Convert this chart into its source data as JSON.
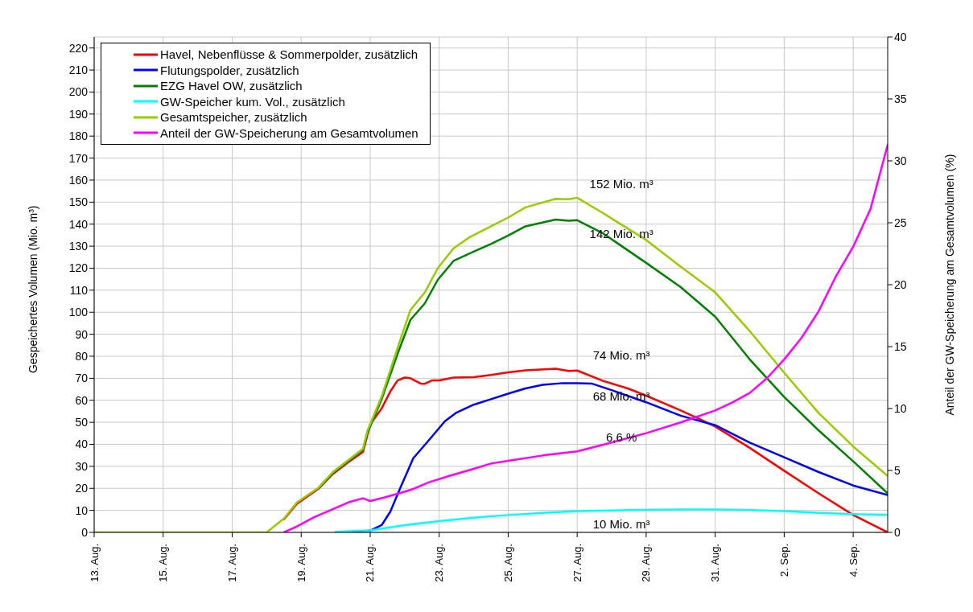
{
  "chart_data": {
    "type": "line",
    "ylabel": "Gespeichertes Volumen (Mio. m³)",
    "y2label": "Anteil der GW-Speicherung am Gesamtvolumen (%)",
    "xlim": [
      "--08-13",
      "--09-05"
    ],
    "xticks": [
      {
        "value": "--08-13",
        "label": "13. Aug."
      },
      {
        "value": "--08-15",
        "label": "15. Aug."
      },
      {
        "value": "--08-17",
        "label": "17. Aug."
      },
      {
        "value": "--08-19",
        "label": "19. Aug."
      },
      {
        "value": "--08-21",
        "label": "21. Aug."
      },
      {
        "value": "--08-23",
        "label": "23. Aug."
      },
      {
        "value": "--08-25",
        "label": "25. Aug."
      },
      {
        "value": "--08-27",
        "label": "27. Aug."
      },
      {
        "value": "--08-29",
        "label": "29. Aug."
      },
      {
        "value": "--08-31",
        "label": "31. Aug."
      },
      {
        "value": "--09-02",
        "label": "2. Sep."
      },
      {
        "value": "--09-04",
        "label": "4. Sep."
      }
    ],
    "ylim": [
      0,
      225
    ],
    "yticks": [
      0,
      10,
      20,
      30,
      40,
      50,
      60,
      70,
      80,
      90,
      100,
      110,
      120,
      130,
      140,
      150,
      160,
      170,
      180,
      190,
      200,
      210,
      220
    ],
    "y2lim": [
      0,
      40
    ],
    "y2ticks": [
      0,
      5,
      10,
      15,
      20,
      25,
      30,
      35,
      40
    ],
    "grid": true,
    "legend": "top left",
    "marker": "none",
    "line_style": "solid",
    "series": [
      {
        "name": "Havel, Nebenflüsse & Sommerpolder, zusätzlich",
        "color": "#ff0000",
        "x": [
          "--08-18T12:00",
          "--08-18T21:00",
          "--08-19T12:00",
          "--08-19T22:00",
          "--08-20T09:00",
          "--08-20T19:00",
          "--08-21",
          "--08-21T08:00",
          "--08-21T14:00",
          "--08-21T19:00",
          "--08-22",
          "--08-22T04:00",
          "--08-22T11:00",
          "--08-22T14:00",
          "--08-22T19:00",
          "--08-23",
          "--08-23T10:00",
          "--08-24",
          "--08-24T12:00",
          "--08-25",
          "--08-25T12:00",
          "--08-26T09:00",
          "--08-26T18:00",
          "--08-27",
          "--08-27T18:00",
          "--08-28T12:00",
          "--08-29",
          "--08-30",
          "--08-30T12:00",
          "--08-31",
          "--09-01",
          "--09-02",
          "--09-03",
          "--09-04",
          "--09-05"
        ],
        "values": [
          6,
          13,
          19.8,
          26.5,
          32,
          36.5,
          49,
          56.3,
          64,
          69,
          70.3,
          70,
          67.6,
          67.5,
          69,
          69,
          70.3,
          70.5,
          71.5,
          72.7,
          73.6,
          74.3,
          73.3,
          73.5,
          68.8,
          65.2,
          62.1,
          55.4,
          51.8,
          48.1,
          38.4,
          28,
          17.7,
          7.9,
          0
        ]
      },
      {
        "name": "Flutungspolder, zusätzlich",
        "color": "#0000ff",
        "x": [
          "--08-20T12:00",
          "--08-21",
          "--08-21T08:00",
          "--08-21T14:00",
          "--08-21T21:00",
          "--08-22T06:00",
          "--08-22T17:00",
          "--08-23T04:00",
          "--08-23T12:00",
          "--08-24",
          "--08-24T12:00",
          "--08-25",
          "--08-25T12:00",
          "--08-26",
          "--08-26T14:00",
          "--08-27",
          "--08-27T10:00",
          "--08-28",
          "--08-29",
          "--08-30",
          "--08-31",
          "--09-01",
          "--09-02",
          "--09-03",
          "--09-04",
          "--09-05"
        ],
        "values": [
          0.3,
          0.8,
          3.3,
          9.4,
          20.3,
          33.7,
          42,
          50.5,
          54.4,
          58,
          60.5,
          63,
          65.4,
          67,
          67.8,
          67.8,
          67.6,
          64.6,
          59.1,
          53,
          48.7,
          40.8,
          34.1,
          27.4,
          21.3,
          17
        ]
      },
      {
        "name": "EZG Havel OW, zusätzlich",
        "color": "#008000",
        "x": [
          "--08-19T12:00",
          "--08-19T22:00",
          "--08-20T09:00",
          "--08-20T19:00",
          "--08-20T22:00",
          "--08-21T08:00",
          "--08-21T19:00",
          "--08-22T04:00",
          "--08-22T14:00",
          "--08-22T23:00",
          "--08-23T10:00",
          "--08-24",
          "--08-24T12:00",
          "--08-25",
          "--08-25T12:00",
          "--08-26T09:00",
          "--08-26T18:00",
          "--08-27",
          "--08-27T18:00",
          "--08-29",
          "--08-30",
          "--08-31",
          "--09-01",
          "--09-02",
          "--09-03",
          "--09-04",
          "--09-05"
        ],
        "values": [
          20,
          27,
          32.5,
          37.5,
          45,
          60.5,
          81,
          96.5,
          104,
          114.7,
          123.3,
          127.5,
          131,
          134.8,
          139,
          142.1,
          141.5,
          141.8,
          135.8,
          122.4,
          111.4,
          98,
          78.6,
          61.5,
          46.3,
          32.3,
          17.7
        ]
      },
      {
        "name": "GW-Speicher kum. Vol., zusätzlich",
        "color": "#00ffff",
        "x": [
          "--08-20",
          "--08-21",
          "--08-22",
          "--08-23",
          "--08-24",
          "--08-25",
          "--08-26",
          "--08-27",
          "--08-28T12:00",
          "--08-30",
          "--08-31",
          "--09-01",
          "--09-02",
          "--09-03",
          "--09-04",
          "--09-05"
        ],
        "values": [
          0.3,
          0.9,
          3.3,
          5.1,
          6.7,
          7.9,
          8.9,
          9.7,
          10.1,
          10.4,
          10.4,
          10.1,
          9.7,
          8.9,
          8.3,
          7.9
        ]
      },
      {
        "name": "Gesamtspeicher, zusätzlich",
        "color": "#99cc00",
        "x": [
          "--08-13",
          "--08-18",
          "--08-18T12:00",
          "--08-18T21:00",
          "--08-19T12:00",
          "--08-19T22:00",
          "--08-20T09:00",
          "--08-20T19:00",
          "--08-20T22:00",
          "--08-21T08:00",
          "--08-21T19:00",
          "--08-22T04:00",
          "--08-22T14:00",
          "--08-22T23:00",
          "--08-23T10:00",
          "--08-23T21:00",
          "--08-24T12:00",
          "--08-25",
          "--08-25T12:00",
          "--08-26T09:00",
          "--08-26T18:00",
          "--08-27",
          "--08-27T18:00",
          "--08-29",
          "--08-29T23:00",
          "--08-31",
          "--09-01T01:00",
          "--09-02",
          "--09-03",
          "--09-04",
          "--09-05"
        ],
        "values": [
          0,
          0,
          6.3,
          13.6,
          20.3,
          27.4,
          33,
          38,
          46,
          61.8,
          83.7,
          101,
          109,
          120,
          129,
          134,
          139,
          143,
          147.6,
          151.5,
          151.3,
          152,
          145,
          132.8,
          121.2,
          109,
          90.7,
          72.5,
          54.2,
          39,
          25.6
        ]
      },
      {
        "name": "Anteil der GW-Speicherung am Gesamtvolumen",
        "color": "#ff00ff",
        "axis": "y2",
        "x": [
          "--08-18T12:00",
          "--08-18T21:00",
          "--08-19T09:00",
          "--08-19T22:00",
          "--08-20T09:00",
          "--08-20T19:00",
          "--08-21",
          "--08-21T09:00",
          "--08-21T21:00",
          "--08-22T06:00",
          "--08-22T17:00",
          "--08-23T08:00",
          "--08-24",
          "--08-24T12:00",
          "--08-25",
          "--08-26",
          "--08-27",
          "--08-28",
          "--08-29",
          "--08-30",
          "--08-31",
          "--08-31T12:00",
          "--09-01",
          "--09-01T12:00",
          "--09-02",
          "--09-02T12:00",
          "--09-03",
          "--09-03T12:00",
          "--09-04",
          "--09-04T12:00",
          "--09-05"
        ],
        "values": [
          0,
          0.48,
          1.23,
          1.88,
          2.43,
          2.75,
          2.53,
          2.79,
          3.18,
          3.51,
          4.05,
          4.59,
          5.13,
          5.56,
          5.78,
          6.21,
          6.54,
          7.26,
          8.01,
          8.88,
          9.85,
          10.5,
          11.26,
          12.45,
          13.97,
          15.7,
          17.87,
          20.68,
          23.07,
          26.1,
          31.3
        ]
      }
    ],
    "annotations": [
      {
        "text": "152 Mio. m³",
        "x": "--08-27",
        "y": 152
      },
      {
        "text": "142 Mio. m³",
        "x": "--08-27",
        "y": 142
      },
      {
        "text": "74 Mio. m³",
        "x": "--08-27",
        "y": 74
      },
      {
        "text": "68 Mio. m³",
        "x": "--08-27",
        "y": 68
      },
      {
        "text": "6,6 %",
        "x": "--08-27",
        "y": 37
      },
      {
        "text": "10 Mio. m³",
        "x": "--08-27",
        "y": 10
      }
    ]
  }
}
